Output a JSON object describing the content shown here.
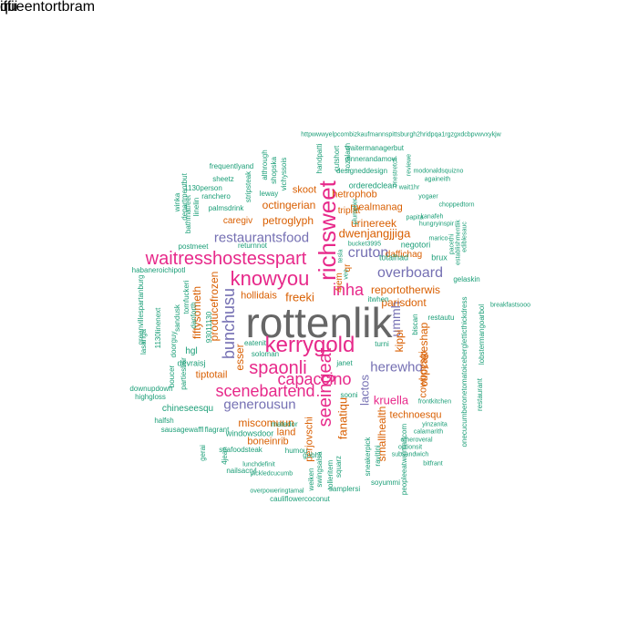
{
  "colors": {
    "gray": "#666666",
    "pink": "#e7298a",
    "purple": "#7570b3",
    "orange": "#d95f02",
    "teal": "#1b9e77"
  },
  "words": [
    {
      "text": "rottenlik",
      "color": "gray"
    },
    {
      "text": "richsweet",
      "color": "pink"
    },
    {
      "text": "kerrygold",
      "color": "pink"
    },
    {
      "text": "waitresshostesspart",
      "color": "pink"
    },
    {
      "text": "knowyou",
      "color": "pink"
    },
    {
      "text": "spaonli",
      "color": "pink"
    },
    {
      "text": "seeingeat",
      "color": "pink"
    },
    {
      "text": "scenebartend",
      "color": "pink"
    },
    {
      "text": "capaccino",
      "color": "pink"
    },
    {
      "text": "inha",
      "color": "pink"
    },
    {
      "text": "cruton",
      "color": "purple"
    },
    {
      "text": "overboard",
      "color": "purple"
    },
    {
      "text": "restaurantsfood",
      "color": "purple"
    },
    {
      "text": "herewho",
      "color": "purple"
    },
    {
      "text": "bunchusu",
      "color": "purple"
    },
    {
      "text": "generousun",
      "color": "purple"
    },
    {
      "text": "ummh",
      "color": "purple"
    },
    {
      "text": "lactos",
      "color": "purple"
    },
    {
      "text": "kruella",
      "color": "pink"
    },
    {
      "text": "fanatiqu",
      "color": "orange"
    },
    {
      "text": "dwenjangjjiga",
      "color": "orange"
    },
    {
      "text": "petroglyph",
      "color": "orange"
    },
    {
      "text": "freeki",
      "color": "orange"
    },
    {
      "text": "fiftysometh",
      "color": "orange"
    },
    {
      "text": "producefrozen",
      "color": "orange"
    },
    {
      "text": "cupcakeshap",
      "color": "orange"
    },
    {
      "text": "parisdont",
      "color": "orange"
    },
    {
      "text": "reportotherwis",
      "color": "orange"
    },
    {
      "text": "urinereek",
      "color": "orange"
    },
    {
      "text": "mealmanag",
      "color": "orange"
    },
    {
      "text": "octingerian",
      "color": "orange"
    },
    {
      "text": "miscomuun",
      "color": "orange"
    },
    {
      "text": "boneinrib",
      "color": "orange"
    },
    {
      "text": "land",
      "color": "orange"
    },
    {
      "text": "cowboysgi",
      "color": "orange"
    },
    {
      "text": "technoesqu",
      "color": "orange"
    },
    {
      "text": "smallhealth",
      "color": "orange"
    },
    {
      "text": "perjovschi",
      "color": "orange"
    },
    {
      "text": "esser",
      "color": "orange"
    },
    {
      "text": "hollidais",
      "color": "orange"
    },
    {
      "text": "tiptotail",
      "color": "orange"
    },
    {
      "text": "hetrophob",
      "color": "orange"
    },
    {
      "text": "skoot",
      "color": "orange"
    },
    {
      "text": "caregiv",
      "color": "orange"
    },
    {
      "text": "daffichag",
      "color": "orange"
    },
    {
      "text": "triplat",
      "color": "orange"
    },
    {
      "text": "4iem",
      "color": "orange"
    },
    {
      "text": "kippi",
      "color": "orange"
    },
    {
      "text": "qr",
      "color": "orange"
    },
    {
      "text": "negotori",
      "color": "teal"
    },
    {
      "text": "orderedclean",
      "color": "teal"
    },
    {
      "text": "designeddesign",
      "color": "teal"
    },
    {
      "text": "dinnerandamovi",
      "color": "teal"
    },
    {
      "text": "waitermanagerbut",
      "color": "teal"
    },
    {
      "text": "httpwwwyelpcombizkaufmannspittsburgh2hridpqa1rgzgxdcbpvwvxykjw",
      "color": "teal"
    },
    {
      "text": "frequentlyand",
      "color": "teal"
    },
    {
      "text": "sheetz",
      "color": "teal"
    },
    {
      "text": "1130person",
      "color": "teal"
    },
    {
      "text": "ranchero",
      "color": "teal"
    },
    {
      "text": "palmsdrink",
      "color": "teal"
    },
    {
      "text": "leway",
      "color": "teal"
    },
    {
      "text": "vichyssois",
      "color": "teal"
    },
    {
      "text": "stripsteak",
      "color": "teal"
    },
    {
      "text": "althrough",
      "color": "teal"
    },
    {
      "text": "shopska",
      "color": "teal"
    },
    {
      "text": "handpatti",
      "color": "teal"
    },
    {
      "text": "cutshort",
      "color": "teal"
    },
    {
      "text": "rozalach",
      "color": "teal"
    },
    {
      "text": "modonaldsquizno",
      "color": "teal"
    },
    {
      "text": "againeith",
      "color": "teal"
    },
    {
      "text": "wait1hr",
      "color": "teal"
    },
    {
      "text": "yogaer",
      "color": "teal"
    },
    {
      "text": "choppedtorn",
      "color": "teal"
    },
    {
      "text": "papita",
      "color": "teal"
    },
    {
      "text": "kanafeh",
      "color": "teal"
    },
    {
      "text": "hungryinspir",
      "color": "teal"
    },
    {
      "text": "marico",
      "color": "teal"
    },
    {
      "text": "bucket3995",
      "color": "teal"
    },
    {
      "text": "tesla",
      "color": "teal"
    },
    {
      "text": "veo",
      "color": "teal"
    },
    {
      "text": "brux",
      "color": "teal"
    },
    {
      "text": "totalhad",
      "color": "teal"
    },
    {
      "text": "gelaskin",
      "color": "teal"
    },
    {
      "text": "itwhen",
      "color": "teal"
    },
    {
      "text": "restautu",
      "color": "teal"
    },
    {
      "text": "biscan",
      "color": "teal"
    },
    {
      "text": "turni",
      "color": "teal"
    },
    {
      "text": "eatenit",
      "color": "teal"
    },
    {
      "text": "hgl",
      "color": "teal"
    },
    {
      "text": "devraisj",
      "color": "teal"
    },
    {
      "text": "soloman",
      "color": "teal"
    },
    {
      "text": "janet",
      "color": "teal"
    },
    {
      "text": "sooni",
      "color": "teal"
    },
    {
      "text": "chineseesqu",
      "color": "teal"
    },
    {
      "text": "frontkitchen",
      "color": "teal"
    },
    {
      "text": "yinzanita",
      "color": "teal"
    },
    {
      "text": "calamarith",
      "color": "teal"
    },
    {
      "text": "otheroveral",
      "color": "teal"
    },
    {
      "text": "optionsit",
      "color": "teal"
    },
    {
      "text": "subsandwich",
      "color": "teal"
    },
    {
      "text": "bitfrant",
      "color": "teal"
    },
    {
      "text": "soyummi",
      "color": "teal"
    },
    {
      "text": "samplersi",
      "color": "teal"
    },
    {
      "text": "cauliflowercoconut",
      "color": "teal"
    },
    {
      "text": "overpoweringtamal",
      "color": "teal"
    },
    {
      "text": "pickledcucumb",
      "color": "teal"
    },
    {
      "text": "lunchdefinit",
      "color": "teal"
    },
    {
      "text": "seafoodsteak",
      "color": "teal"
    },
    {
      "text": "windowsdoor",
      "color": "teal"
    },
    {
      "text": "matedor",
      "color": "teal"
    },
    {
      "text": "humou",
      "color": "teal"
    },
    {
      "text": "gobhi",
      "color": "teal"
    },
    {
      "text": "swingsalsa",
      "color": "teal"
    },
    {
      "text": "squarz",
      "color": "teal"
    },
    {
      "text": "sneakerpick",
      "color": "teal"
    },
    {
      "text": "ravitini",
      "color": "teal"
    },
    {
      "text": "tolleritem",
      "color": "teal"
    },
    {
      "text": "weiken",
      "color": "teal"
    },
    {
      "text": "halfsh",
      "color": "teal"
    },
    {
      "text": "sausagewaffl",
      "color": "teal"
    },
    {
      "text": "flagrant",
      "color": "teal"
    },
    {
      "text": "4jean",
      "color": "teal"
    },
    {
      "text": "nailsacryl",
      "color": "teal"
    },
    {
      "text": "gerai",
      "color": "teal"
    },
    {
      "text": "downupdown",
      "color": "teal"
    },
    {
      "text": "highgloss",
      "color": "teal"
    },
    {
      "text": "partiesbar",
      "color": "teal"
    },
    {
      "text": "boucer",
      "color": "teal"
    },
    {
      "text": "doorguy",
      "color": "teal"
    },
    {
      "text": "lasanga",
      "color": "teal"
    },
    {
      "text": "1130linenext",
      "color": "teal"
    },
    {
      "text": "greenvillespartanburg",
      "color": "teal"
    },
    {
      "text": "habaneroichipotl",
      "color": "teal"
    },
    {
      "text": "postmeet",
      "color": "teal"
    },
    {
      "text": "returnnot",
      "color": "teal"
    },
    {
      "text": "winka",
      "color": "teal"
    },
    {
      "text": "bathmatfeet",
      "color": "teal"
    },
    {
      "text": "departmentbut",
      "color": "teal"
    },
    {
      "text": "linelin",
      "color": "teal"
    },
    {
      "text": "sandusk",
      "color": "teal"
    },
    {
      "text": "tomfuckeri",
      "color": "teal"
    },
    {
      "text": "danforth",
      "color": "teal"
    },
    {
      "text": "93011130",
      "color": "teal"
    },
    {
      "text": "restaurant",
      "color": "teal"
    },
    {
      "text": "onecucumberonetomatoicebergletticthickdress",
      "color": "teal"
    },
    {
      "text": "peopleeatwalmartcom",
      "color": "teal"
    },
    {
      "text": "lobstermangoarbol",
      "color": "teal"
    },
    {
      "text": "breakfastsooo",
      "color": "teal"
    },
    {
      "text": "ediblesauc",
      "color": "teal"
    },
    {
      "text": "pacethi",
      "color": "teal"
    },
    {
      "text": "establishmentlik",
      "color": "teal"
    },
    {
      "text": "onestretch",
      "color": "teal"
    },
    {
      "text": "reviewe",
      "color": "teal"
    },
    {
      "text": "plumplier",
      "color": "teal"
    },
    {
      "text": "queentortbram",
      "color": "teal"
    },
    {
      "text": "iffii",
      "color": "teal"
    }
  ]
}
